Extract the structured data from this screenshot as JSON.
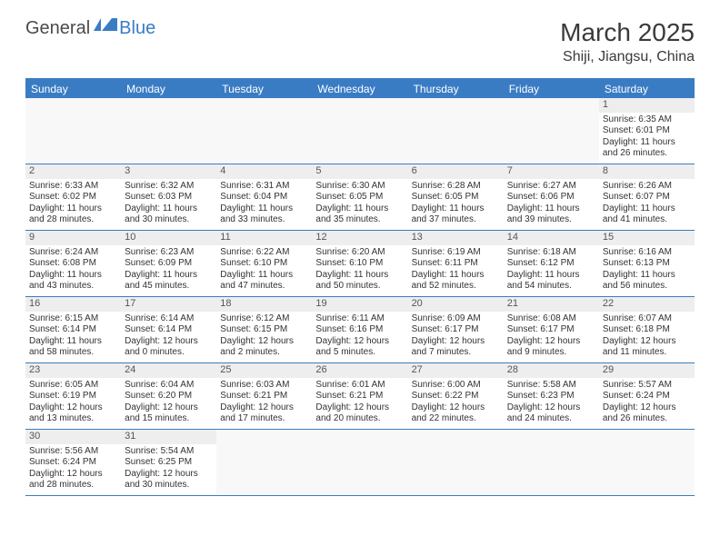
{
  "logo": {
    "part1": "General",
    "part2": "Blue"
  },
  "title": "March 2025",
  "location": "Shiji, Jiangsu, China",
  "colors": {
    "accent": "#3a7cc4",
    "header_text": "#ffffff",
    "body_text": "#333333",
    "daynum_bg": "#eeeeee",
    "empty_bg": "#f8f8f8",
    "background": "#ffffff"
  },
  "day_names": [
    "Sunday",
    "Monday",
    "Tuesday",
    "Wednesday",
    "Thursday",
    "Friday",
    "Saturday"
  ],
  "weeks": [
    [
      null,
      null,
      null,
      null,
      null,
      null,
      {
        "n": 1,
        "sunrise": "Sunrise: 6:35 AM",
        "sunset": "Sunset: 6:01 PM",
        "daylight": "Daylight: 11 hours and 26 minutes."
      }
    ],
    [
      {
        "n": 2,
        "sunrise": "Sunrise: 6:33 AM",
        "sunset": "Sunset: 6:02 PM",
        "daylight": "Daylight: 11 hours and 28 minutes."
      },
      {
        "n": 3,
        "sunrise": "Sunrise: 6:32 AM",
        "sunset": "Sunset: 6:03 PM",
        "daylight": "Daylight: 11 hours and 30 minutes."
      },
      {
        "n": 4,
        "sunrise": "Sunrise: 6:31 AM",
        "sunset": "Sunset: 6:04 PM",
        "daylight": "Daylight: 11 hours and 33 minutes."
      },
      {
        "n": 5,
        "sunrise": "Sunrise: 6:30 AM",
        "sunset": "Sunset: 6:05 PM",
        "daylight": "Daylight: 11 hours and 35 minutes."
      },
      {
        "n": 6,
        "sunrise": "Sunrise: 6:28 AM",
        "sunset": "Sunset: 6:05 PM",
        "daylight": "Daylight: 11 hours and 37 minutes."
      },
      {
        "n": 7,
        "sunrise": "Sunrise: 6:27 AM",
        "sunset": "Sunset: 6:06 PM",
        "daylight": "Daylight: 11 hours and 39 minutes."
      },
      {
        "n": 8,
        "sunrise": "Sunrise: 6:26 AM",
        "sunset": "Sunset: 6:07 PM",
        "daylight": "Daylight: 11 hours and 41 minutes."
      }
    ],
    [
      {
        "n": 9,
        "sunrise": "Sunrise: 6:24 AM",
        "sunset": "Sunset: 6:08 PM",
        "daylight": "Daylight: 11 hours and 43 minutes."
      },
      {
        "n": 10,
        "sunrise": "Sunrise: 6:23 AM",
        "sunset": "Sunset: 6:09 PM",
        "daylight": "Daylight: 11 hours and 45 minutes."
      },
      {
        "n": 11,
        "sunrise": "Sunrise: 6:22 AM",
        "sunset": "Sunset: 6:10 PM",
        "daylight": "Daylight: 11 hours and 47 minutes."
      },
      {
        "n": 12,
        "sunrise": "Sunrise: 6:20 AM",
        "sunset": "Sunset: 6:10 PM",
        "daylight": "Daylight: 11 hours and 50 minutes."
      },
      {
        "n": 13,
        "sunrise": "Sunrise: 6:19 AM",
        "sunset": "Sunset: 6:11 PM",
        "daylight": "Daylight: 11 hours and 52 minutes."
      },
      {
        "n": 14,
        "sunrise": "Sunrise: 6:18 AM",
        "sunset": "Sunset: 6:12 PM",
        "daylight": "Daylight: 11 hours and 54 minutes."
      },
      {
        "n": 15,
        "sunrise": "Sunrise: 6:16 AM",
        "sunset": "Sunset: 6:13 PM",
        "daylight": "Daylight: 11 hours and 56 minutes."
      }
    ],
    [
      {
        "n": 16,
        "sunrise": "Sunrise: 6:15 AM",
        "sunset": "Sunset: 6:14 PM",
        "daylight": "Daylight: 11 hours and 58 minutes."
      },
      {
        "n": 17,
        "sunrise": "Sunrise: 6:14 AM",
        "sunset": "Sunset: 6:14 PM",
        "daylight": "Daylight: 12 hours and 0 minutes."
      },
      {
        "n": 18,
        "sunrise": "Sunrise: 6:12 AM",
        "sunset": "Sunset: 6:15 PM",
        "daylight": "Daylight: 12 hours and 2 minutes."
      },
      {
        "n": 19,
        "sunrise": "Sunrise: 6:11 AM",
        "sunset": "Sunset: 6:16 PM",
        "daylight": "Daylight: 12 hours and 5 minutes."
      },
      {
        "n": 20,
        "sunrise": "Sunrise: 6:09 AM",
        "sunset": "Sunset: 6:17 PM",
        "daylight": "Daylight: 12 hours and 7 minutes."
      },
      {
        "n": 21,
        "sunrise": "Sunrise: 6:08 AM",
        "sunset": "Sunset: 6:17 PM",
        "daylight": "Daylight: 12 hours and 9 minutes."
      },
      {
        "n": 22,
        "sunrise": "Sunrise: 6:07 AM",
        "sunset": "Sunset: 6:18 PM",
        "daylight": "Daylight: 12 hours and 11 minutes."
      }
    ],
    [
      {
        "n": 23,
        "sunrise": "Sunrise: 6:05 AM",
        "sunset": "Sunset: 6:19 PM",
        "daylight": "Daylight: 12 hours and 13 minutes."
      },
      {
        "n": 24,
        "sunrise": "Sunrise: 6:04 AM",
        "sunset": "Sunset: 6:20 PM",
        "daylight": "Daylight: 12 hours and 15 minutes."
      },
      {
        "n": 25,
        "sunrise": "Sunrise: 6:03 AM",
        "sunset": "Sunset: 6:21 PM",
        "daylight": "Daylight: 12 hours and 17 minutes."
      },
      {
        "n": 26,
        "sunrise": "Sunrise: 6:01 AM",
        "sunset": "Sunset: 6:21 PM",
        "daylight": "Daylight: 12 hours and 20 minutes."
      },
      {
        "n": 27,
        "sunrise": "Sunrise: 6:00 AM",
        "sunset": "Sunset: 6:22 PM",
        "daylight": "Daylight: 12 hours and 22 minutes."
      },
      {
        "n": 28,
        "sunrise": "Sunrise: 5:58 AM",
        "sunset": "Sunset: 6:23 PM",
        "daylight": "Daylight: 12 hours and 24 minutes."
      },
      {
        "n": 29,
        "sunrise": "Sunrise: 5:57 AM",
        "sunset": "Sunset: 6:24 PM",
        "daylight": "Daylight: 12 hours and 26 minutes."
      }
    ],
    [
      {
        "n": 30,
        "sunrise": "Sunrise: 5:56 AM",
        "sunset": "Sunset: 6:24 PM",
        "daylight": "Daylight: 12 hours and 28 minutes."
      },
      {
        "n": 31,
        "sunrise": "Sunrise: 5:54 AM",
        "sunset": "Sunset: 6:25 PM",
        "daylight": "Daylight: 12 hours and 30 minutes."
      },
      null,
      null,
      null,
      null,
      null
    ]
  ]
}
